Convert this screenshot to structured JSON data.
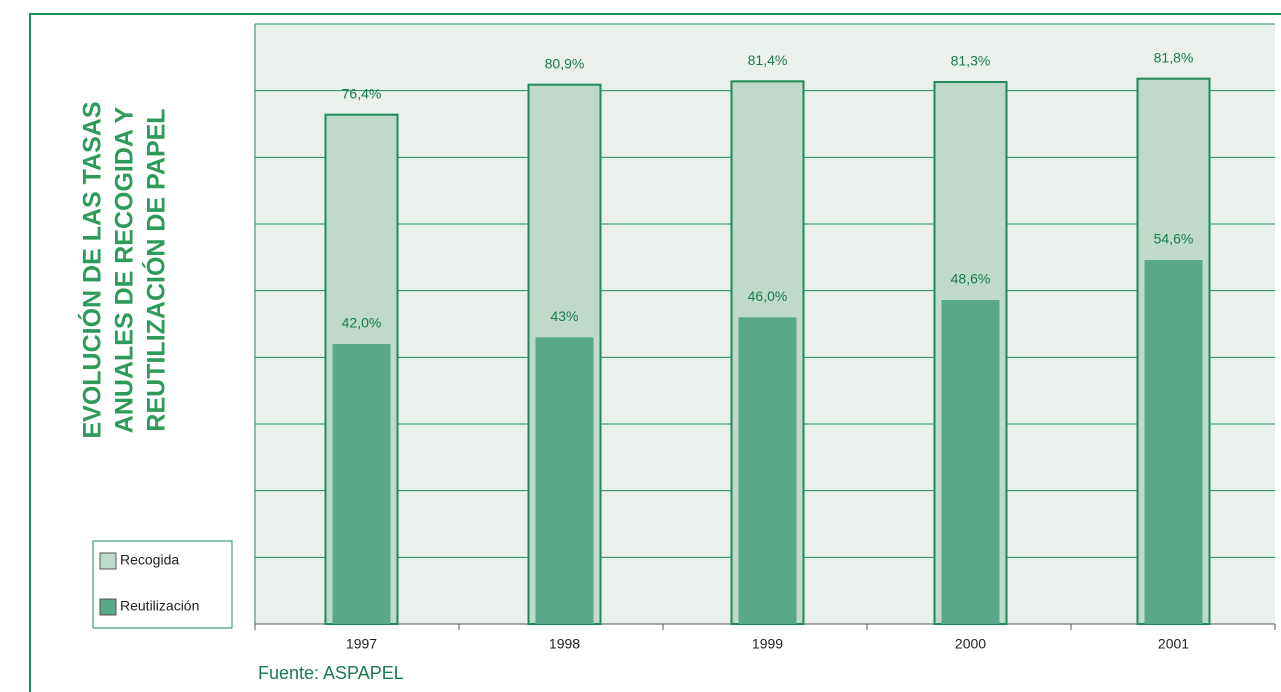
{
  "chart_data": {
    "type": "bar",
    "title": [
      "EVOLUCIÓN DE LAS TASAS",
      "ANUALES DE RECOGIDA Y",
      "REUTILIZACIÓN DE PAPEL"
    ],
    "source": "Fuente: ASPAPEL",
    "categories": [
      "1997",
      "1998",
      "1999",
      "2000",
      "2001"
    ],
    "series": [
      {
        "name": "Recogida",
        "color": "#bfd9cb",
        "values": [
          76.4,
          80.9,
          81.4,
          81.3,
          81.8
        ],
        "value_labels": [
          "76,4%",
          "80,9%",
          "81,4%",
          "81,3%",
          "81,8%"
        ]
      },
      {
        "name": "Reutilización",
        "color": "#58a889",
        "values": [
          42.0,
          43,
          46.0,
          48.6,
          54.6
        ],
        "value_labels": [
          "42,0%",
          "43%",
          "46,0%",
          "48,6%",
          "54,6%"
        ]
      }
    ],
    "ylim": [
      0,
      90
    ],
    "yticks": [
      0,
      10,
      20,
      30,
      40,
      50,
      60,
      70,
      80,
      90
    ],
    "grid": true
  }
}
